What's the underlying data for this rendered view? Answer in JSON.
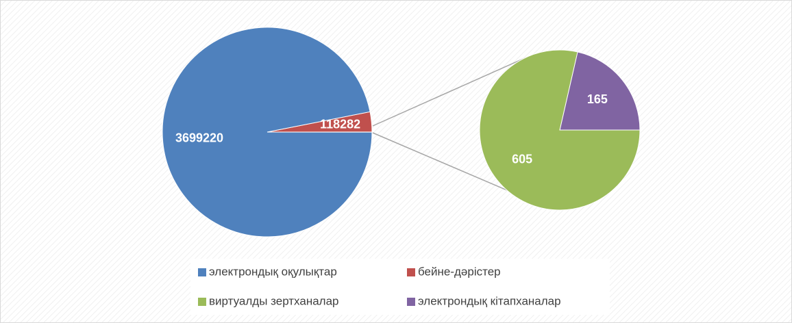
{
  "chart_data": {
    "type": "pie-of-pie",
    "categories": [
      "электрондық оқулықтар",
      "бейне-дәрістер",
      "виртуалды зертханалар",
      "электрондық кітапханалар"
    ],
    "values": [
      3699220,
      118282,
      605,
      165
    ],
    "colors": [
      "#4f81bd",
      "#c0504d",
      "#9bbb59",
      "#8064a2"
    ],
    "secondary_count": 2
  }
}
